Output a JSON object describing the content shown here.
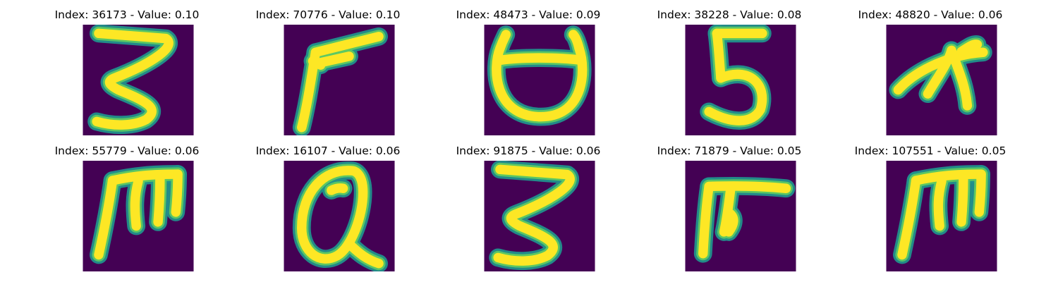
{
  "colors": {
    "background": "#440154",
    "stroke_edge": "#21918c",
    "stroke_mid": "#5ec962",
    "stroke_core": "#fde725",
    "title_text": "#000000"
  },
  "panels": [
    {
      "title": "Index: 36173 - Value: 0.10",
      "glyph": "3"
    },
    {
      "title": "Index: 70776 - Value: 0.10",
      "glyph": "slanted-F"
    },
    {
      "title": "Index: 48473 - Value: 0.09",
      "glyph": "cup"
    },
    {
      "title": "Index: 38228 - Value: 0.08",
      "glyph": "5"
    },
    {
      "title": "Index: 48820 - Value: 0.06",
      "glyph": "arch-sign"
    },
    {
      "title": "Index: 55779 - Value: 0.06",
      "glyph": "m-shape"
    },
    {
      "title": "Index: 16107 - Value: 0.06",
      "glyph": "Q-shape"
    },
    {
      "title": "Index: 91875 - Value: 0.06",
      "glyph": "3"
    },
    {
      "title": "Index: 71879 - Value: 0.05",
      "glyph": "pi-shape"
    },
    {
      "title": "Index: 107551 - Value: 0.05",
      "glyph": "m-shape"
    }
  ]
}
